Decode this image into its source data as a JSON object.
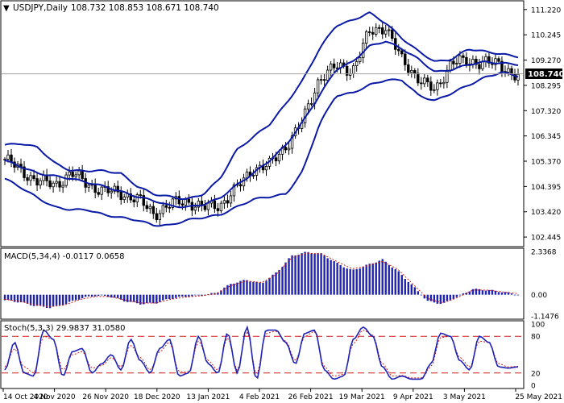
{
  "symbol_header": {
    "symbol": "USDJPY,Daily",
    "ohlc": "108.732 108.853 108.671 108.740"
  },
  "price_panel": {
    "axis_ticks": [
      "111.220",
      "110.245",
      "109.270",
      "108.295",
      "107.320",
      "106.345",
      "105.370",
      "104.395",
      "103.420",
      "102.445"
    ],
    "current_price": "108.740",
    "colors": {
      "bands": "#0a1aa6",
      "candles": "#000000",
      "price_line": "#a0a0a0",
      "price_tag_bg": "#000000",
      "price_tag_text": "#ffffff"
    }
  },
  "macd_panel": {
    "title": "MACD(5,34,4) -0.0117 0.0658",
    "axis_ticks": [
      "2.3368",
      "0.00",
      "-1.1476"
    ],
    "colors": {
      "histogram": "#1f23b5",
      "signal": "#d11d1d"
    }
  },
  "stoch_panel": {
    "title": "Stoch(5,3,3) 29.9837 31.0580",
    "axis_ticks": [
      "100",
      "80",
      "20",
      "0"
    ],
    "colors": {
      "main": "#1f23b5",
      "signal": "#d11d1d",
      "levels": "#d11d1d"
    }
  },
  "x_axis_labels": [
    "14 Oct 2020",
    "4 Nov 2020",
    "26 Nov 2020",
    "18 Dec 2020",
    "13 Jan 2021",
    "4 Feb 2021",
    "26 Feb 2021",
    "19 Mar 2021",
    "9 Apr 2021",
    "3 May 2021",
    "25 May 2021"
  ],
  "chart_data": [
    {
      "type": "candlestick",
      "title": "USDJPY,Daily",
      "ylim": [
        102.2,
        111.4
      ],
      "series": [
        {
          "name": "price",
          "description": "weekly anchor closes (daily candles interpolated)",
          "x": [
            "2020-10-14",
            "2020-10-21",
            "2020-10-28",
            "2020-11-04",
            "2020-11-11",
            "2020-11-18",
            "2020-11-26",
            "2020-12-03",
            "2020-12-10",
            "2020-12-18",
            "2020-12-25",
            "2021-01-06",
            "2021-01-13",
            "2021-01-20",
            "2021-01-27",
            "2021-02-04",
            "2021-02-11",
            "2021-02-18",
            "2021-02-26",
            "2021-03-05",
            "2021-03-12",
            "2021-03-19",
            "2021-03-26",
            "2021-03-31",
            "2021-04-09",
            "2021-04-16",
            "2021-04-23",
            "2021-04-30",
            "2021-05-07",
            "2021-05-14",
            "2021-05-21",
            "2021-05-25"
          ],
          "values": [
            105.45,
            105.0,
            104.6,
            104.45,
            104.9,
            104.5,
            104.2,
            104.15,
            103.9,
            103.35,
            103.7,
            103.85,
            103.55,
            103.7,
            104.3,
            105.1,
            105.2,
            106.0,
            106.9,
            108.6,
            109.0,
            108.9,
            110.3,
            110.6,
            109.2,
            108.6,
            108.0,
            109.3,
            109.1,
            109.3,
            108.95,
            108.74
          ]
        },
        {
          "name": "bollinger_upper",
          "description": "upper band anchors",
          "values": [
            106.0,
            106.05,
            105.9,
            105.3,
            105.0,
            105.0,
            105.0,
            104.9,
            104.4,
            104.1,
            104.0,
            103.9,
            104.1,
            104.7,
            105.8,
            106.3,
            106.8,
            107.6,
            108.5,
            109.7,
            110.6,
            110.8,
            111.1,
            110.7,
            110.1,
            109.6,
            109.2,
            109.3,
            109.7,
            109.6,
            109.5,
            109.4
          ]
        },
        {
          "name": "bollinger_middle",
          "values": [
            105.4,
            105.15,
            104.9,
            104.8,
            104.7,
            104.55,
            104.4,
            104.2,
            104.0,
            103.85,
            103.65,
            103.6,
            103.7,
            103.95,
            104.45,
            104.9,
            105.4,
            106.0,
            106.9,
            107.9,
            108.9,
            109.2,
            109.8,
            110.0,
            109.7,
            109.3,
            108.8,
            108.9,
            109.1,
            109.2,
            109.15,
            109.1
          ]
        },
        {
          "name": "bollinger_lower",
          "values": [
            104.7,
            104.35,
            103.95,
            103.6,
            103.5,
            103.5,
            103.3,
            103.2,
            103.1,
            102.9,
            102.9,
            103.1,
            103.2,
            103.3,
            103.6,
            103.9,
            104.0,
            104.1,
            105.0,
            106.8,
            107.9,
            108.0,
            108.3,
            108.5,
            108.5,
            107.9,
            107.7,
            108.0,
            108.3,
            108.6,
            108.8,
            108.65
          ]
        }
      ]
    },
    {
      "type": "bar",
      "title": "MACD(5,34,4)",
      "ylim": [
        -1.1476,
        2.3368
      ],
      "series": [
        {
          "name": "histogram",
          "values": [
            -0.3,
            -0.4,
            -0.6,
            -0.7,
            -0.5,
            -0.2,
            -0.05,
            -0.1,
            -0.35,
            -0.5,
            -0.45,
            -0.2,
            -0.1,
            -0.05,
            0.1,
            0.6,
            0.8,
            0.6,
            1.2,
            2.1,
            2.3,
            2.2,
            1.7,
            1.3,
            1.6,
            1.9,
            1.3,
            0.5,
            -0.35,
            -0.5,
            -0.1,
            0.3,
            0.25,
            0.15,
            0.0
          ]
        },
        {
          "name": "signal",
          "values": [
            -0.25,
            -0.35,
            -0.55,
            -0.65,
            -0.55,
            -0.25,
            -0.1,
            -0.1,
            -0.3,
            -0.45,
            -0.45,
            -0.25,
            -0.12,
            -0.06,
            0.05,
            0.5,
            0.75,
            0.65,
            1.1,
            2.0,
            2.25,
            2.2,
            1.8,
            1.4,
            1.55,
            1.8,
            1.4,
            0.6,
            -0.2,
            -0.45,
            -0.15,
            0.25,
            0.25,
            0.15,
            0.06
          ]
        }
      ]
    },
    {
      "type": "line",
      "title": "Stoch(5,3,3)",
      "ylim": [
        0,
        100
      ],
      "levels": [
        80,
        20
      ],
      "series": [
        {
          "name": "main",
          "values": [
            25,
            70,
            20,
            15,
            90,
            75,
            15,
            55,
            60,
            20,
            35,
            50,
            25,
            75,
            40,
            20,
            60,
            75,
            15,
            20,
            80,
            35,
            20,
            85,
            20,
            95,
            10,
            90,
            90,
            70,
            35,
            85,
            90,
            25,
            10,
            15,
            75,
            95,
            80,
            30,
            10,
            15,
            10,
            10,
            35,
            85,
            80,
            40,
            25,
            80,
            70,
            30,
            28,
            30
          ]
        },
        {
          "name": "signal",
          "values": [
            30,
            60,
            30,
            20,
            80,
            75,
            25,
            50,
            55,
            28,
            32,
            45,
            30,
            65,
            45,
            25,
            55,
            70,
            22,
            22,
            72,
            40,
            25,
            78,
            25,
            88,
            18,
            85,
            88,
            72,
            40,
            80,
            88,
            30,
            15,
            18,
            68,
            90,
            82,
            35,
            15,
            16,
            12,
            12,
            30,
            78,
            80,
            45,
            30,
            72,
            70,
            35,
            30,
            31
          ]
        }
      ]
    }
  ]
}
